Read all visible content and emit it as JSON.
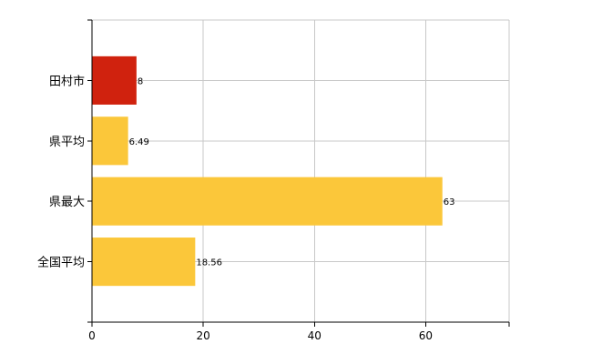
{
  "chart_data": {
    "type": "bar",
    "orientation": "horizontal",
    "categories": [
      "田村市",
      "県平均",
      "県最大",
      "全国平均"
    ],
    "values": [
      8,
      6.49,
      63,
      18.56
    ],
    "value_labels": [
      "8",
      "6.49",
      "63",
      "18.56"
    ],
    "bar_colors": [
      "#d0220e",
      "#fbc73a",
      "#fbc73a",
      "#fbc73a"
    ],
    "xlim": [
      0,
      75
    ],
    "x_ticks": [
      0,
      20,
      40,
      60
    ],
    "grid": true,
    "legend": false,
    "title": "",
    "xlabel": "",
    "ylabel": ""
  }
}
